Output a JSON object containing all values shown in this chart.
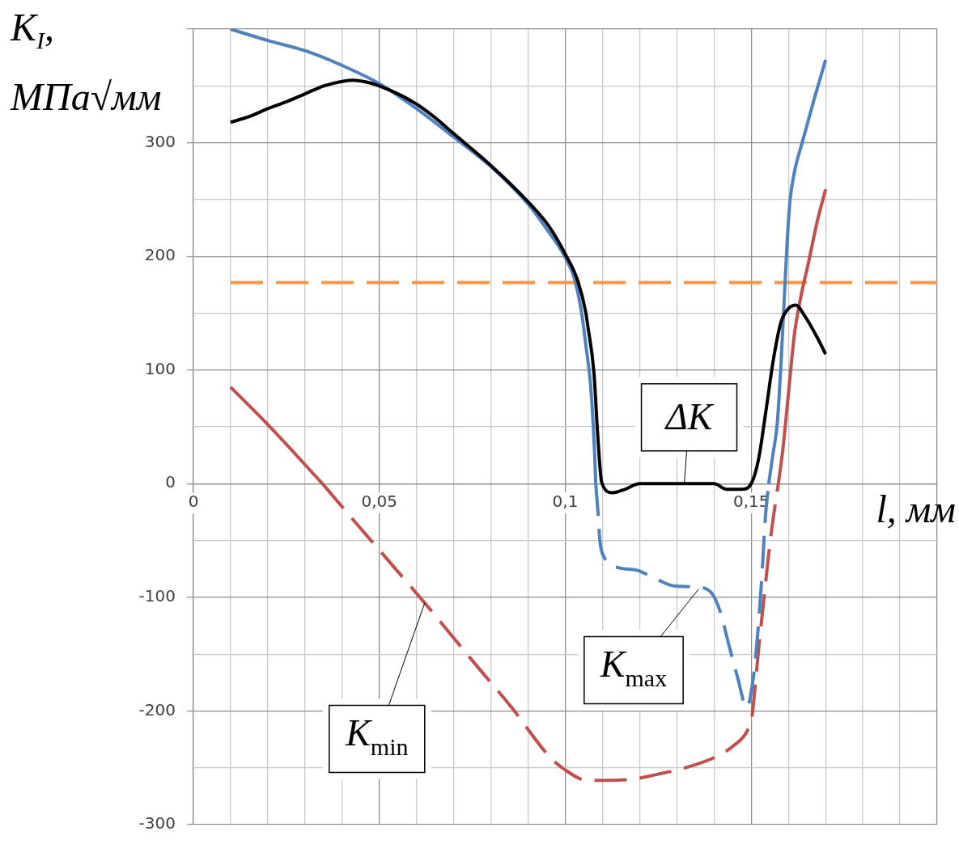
{
  "chart_data": {
    "type": "line",
    "xlabel": "l, мм",
    "ylabel": "K$_{I}$, МПа√мм",
    "xlim": [
      0,
      0.2
    ],
    "xticks": [
      0,
      {
        "value": 0.01,
        "label": null
      },
      {
        "value": 0.02,
        "label": null
      },
      {
        "value": 0.03,
        "label": null
      },
      {
        "value": 0.04,
        "label": null
      },
      {
        "value": 0.05,
        "label": "0,05"
      },
      {
        "value": 0.06,
        "label": null
      },
      {
        "value": 0.07,
        "label": null
      },
      {
        "value": 0.08,
        "label": null
      },
      {
        "value": 0.09,
        "label": null
      },
      {
        "value": 0.1,
        "label": "0,1"
      },
      {
        "value": 0.11,
        "label": null
      },
      {
        "value": 0.12,
        "label": null
      },
      {
        "value": 0.13,
        "label": null
      },
      {
        "value": 0.14,
        "label": null
      },
      {
        "value": 0.15,
        "label": "0,15"
      },
      {
        "value": 0.16,
        "label": null
      },
      {
        "value": 0.17,
        "label": null
      },
      {
        "value": 0.18,
        "label": null
      },
      {
        "value": 0.19,
        "label": null
      },
      {
        "value": 0.2,
        "label": null
      }
    ],
    "ylim": [
      -300,
      400
    ],
    "yticks": [
      -300,
      {
        "value": -250,
        "label": null
      },
      -200,
      {
        "value": -150,
        "label": null
      },
      -100,
      {
        "value": -50,
        "label": null
      },
      0,
      {
        "value": 50,
        "label": null
      },
      100,
      {
        "value": 150,
        "label": null
      },
      200,
      {
        "value": 250,
        "label": null
      },
      300,
      {
        "value": 350,
        "label": null
      },
      {
        "value": 400,
        "label": null
      }
    ],
    "grid": true,
    "series": [
      {
        "color": "#f79646",
        "line_style": "dashed",
        "x": [
          0.01,
          0.2
        ],
        "values": [
          177,
          177
        ]
      },
      {
        "color": "#c0504d",
        "line_style": "solid",
        "x": [
          0.01,
          0.02,
          0.0347
        ],
        "values": [
          85,
          52,
          0
        ]
      },
      {
        "color": "#c0504d",
        "line_style": "dashed",
        "x": [
          0.0347,
          0.0425,
          0.0622,
          0.0756,
          0.0856,
          0.0957,
          0.0996,
          0.1058,
          0.1113,
          0.1183,
          0.1245,
          0.1323,
          0.1401,
          0.1455,
          0.149,
          0.1502,
          0.151,
          0.1521,
          0.1533,
          0.1545,
          0.1556,
          0.1573
        ],
        "values": [
          0,
          -30,
          -105,
          -158,
          -197,
          -240,
          -251,
          -261,
          -261,
          -260,
          -256,
          -250,
          -241,
          -230,
          -217,
          -205,
          -180,
          -142,
          -105,
          -68,
          -38,
          0
        ]
      },
      {
        "color": "#c0504d",
        "line_style": "solid",
        "x": [
          0.1573,
          0.1585,
          0.16,
          0.1616,
          0.1635,
          0.1653,
          0.1677,
          0.17
        ],
        "values": [
          0,
          30,
          79,
          131,
          167,
          193,
          230,
          259
        ]
      },
      {
        "color": "#4f81bd",
        "line_style": "solid",
        "x": [
          0.01,
          0.02,
          0.03,
          0.04,
          0.05,
          0.06,
          0.07,
          0.08,
          0.09,
          0.095,
          0.1,
          0.1025,
          0.1044,
          0.1056,
          0.1068,
          0.1078,
          0.1082
        ],
        "values": [
          400,
          390,
          381,
          368,
          352,
          330,
          305,
          279,
          246,
          224,
          199,
          180,
          150,
          120,
          87,
          33,
          0
        ]
      },
      {
        "color": "#4f81bd",
        "line_style": "dashed",
        "x": [
          0.1082,
          0.1089,
          0.1093,
          0.1105,
          0.1144,
          0.1191,
          0.1245,
          0.1292,
          0.1354,
          0.1393,
          0.1416,
          0.144,
          0.1463,
          0.1488,
          0.1506,
          0.1518,
          0.1529,
          0.1538,
          0.1547
        ],
        "values": [
          0,
          -30,
          -50,
          -65,
          -74,
          -76,
          -84,
          -90,
          -91,
          -96,
          -112,
          -142,
          -170,
          -197,
          -170,
          -130,
          -80,
          -30,
          0
        ]
      },
      {
        "color": "#4f81bd",
        "line_style": "solid",
        "x": [
          0.1547,
          0.1559,
          0.157,
          0.158,
          0.1588,
          0.1596,
          0.1604,
          0.1616,
          0.1637,
          0.1669,
          0.17
        ],
        "values": [
          0,
          27,
          53,
          105,
          157,
          209,
          248,
          274,
          300,
          338,
          373
        ]
      },
      {
        "color": "#000000",
        "line_style": "solid",
        "x": [
          0.01,
          0.015,
          0.02,
          0.025,
          0.03,
          0.035,
          0.04,
          0.043,
          0.047,
          0.05,
          0.055,
          0.06,
          0.065,
          0.07,
          0.08,
          0.09,
          0.0955,
          0.1,
          0.1033,
          0.1055,
          0.106,
          0.1077,
          0.1087,
          0.1098,
          0.1127,
          0.116,
          0.12,
          0.14,
          0.1435,
          0.1474,
          0.15,
          0.152,
          0.154,
          0.156,
          0.158,
          0.16,
          0.162,
          0.1645,
          0.1677,
          0.17
        ],
        "values": [
          318,
          323,
          330,
          336,
          343,
          350,
          354,
          355,
          353,
          350,
          343,
          334,
          322,
          308,
          280,
          248,
          227,
          202,
          179,
          151,
          140,
          98,
          44,
          1,
          -8,
          -5,
          0,
          0,
          -5,
          -5,
          0,
          22,
          65,
          110,
          142,
          154,
          157,
          147,
          129,
          114
        ]
      }
    ],
    "annotations": [
      {
        "text": "ΔK",
        "x": 0.132,
        "y": 0
      },
      {
        "text": "K$_{max}$",
        "x": 0.1358,
        "y": -93
      },
      {
        "text": "K$_{min}$",
        "x": 0.0622,
        "y": -105
      }
    ]
  }
}
